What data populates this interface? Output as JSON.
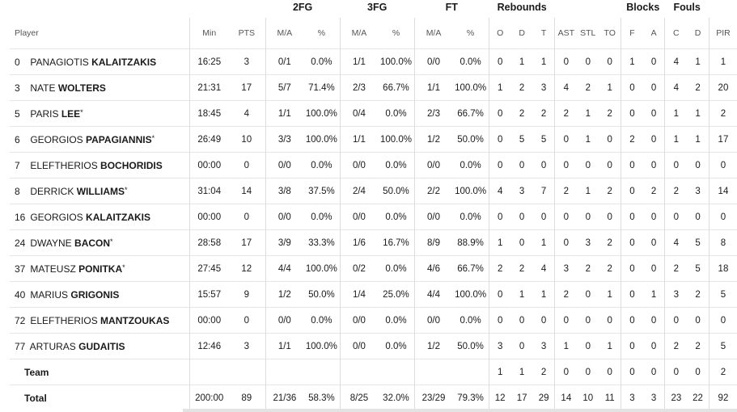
{
  "groups": {
    "fg2": "2FG",
    "fg3": "3FG",
    "ft": "FT",
    "rebounds": "Rebounds",
    "blocks": "Blocks",
    "fouls": "Fouls"
  },
  "headers": {
    "player": "Player",
    "min": "Min",
    "pts": "PTS",
    "fg2_ma": "M/A",
    "fg2_pct": "%",
    "fg3_ma": "M/A",
    "fg3_pct": "%",
    "ft_ma": "M/A",
    "ft_pct": "%",
    "o": "O",
    "d": "D",
    "t": "T",
    "ast": "AST",
    "stl": "STL",
    "to": "TO",
    "f": "F",
    "a": "A",
    "c": "C",
    "dr": "D",
    "pir": "PIR"
  },
  "players": [
    {
      "num": "0",
      "first": "PANAGIOTIS",
      "last": "KALAITZAKIS",
      "starter": "",
      "marked": false,
      "min": "16:25",
      "pts": "3",
      "fg2": "0/1",
      "fg2p": "0.0%",
      "fg3": "1/1",
      "fg3p": "100.0%",
      "ft": "0/0",
      "ftp": "0.0%",
      "o": "0",
      "d": "1",
      "t": "1",
      "ast": "0",
      "stl": "0",
      "to": "0",
      "f": "1",
      "a": "0",
      "c": "4",
      "dr": "1",
      "pir": "1"
    },
    {
      "num": "3",
      "first": "NATE",
      "last": "WOLTERS",
      "starter": "",
      "marked": true,
      "min": "21:31",
      "pts": "17",
      "fg2": "5/7",
      "fg2p": "71.4%",
      "fg3": "2/3",
      "fg3p": "66.7%",
      "ft": "1/1",
      "ftp": "100.0%",
      "o": "1",
      "d": "2",
      "t": "3",
      "ast": "4",
      "stl": "2",
      "to": "1",
      "f": "0",
      "a": "0",
      "c": "4",
      "dr": "2",
      "pir": "20"
    },
    {
      "num": "5",
      "first": "PARIS",
      "last": "LEE",
      "starter": "*",
      "marked": false,
      "min": "18:45",
      "pts": "4",
      "fg2": "1/1",
      "fg2p": "100.0%",
      "fg3": "0/4",
      "fg3p": "0.0%",
      "ft": "2/3",
      "ftp": "66.7%",
      "o": "0",
      "d": "2",
      "t": "2",
      "ast": "2",
      "stl": "1",
      "to": "2",
      "f": "0",
      "a": "0",
      "c": "1",
      "dr": "1",
      "pir": "2"
    },
    {
      "num": "6",
      "first": "GEORGIOS",
      "last": "PAPAGIANNIS",
      "starter": "*",
      "marked": false,
      "min": "26:49",
      "pts": "10",
      "fg2": "3/3",
      "fg2p": "100.0%",
      "fg3": "1/1",
      "fg3p": "100.0%",
      "ft": "1/2",
      "ftp": "50.0%",
      "o": "0",
      "d": "5",
      "t": "5",
      "ast": "0",
      "stl": "1",
      "to": "0",
      "f": "2",
      "a": "0",
      "c": "1",
      "dr": "1",
      "pir": "17"
    },
    {
      "num": "7",
      "first": "ELEFTHERIOS",
      "last": "BOCHORIDIS",
      "starter": "",
      "marked": false,
      "min": "00:00",
      "pts": "0",
      "fg2": "0/0",
      "fg2p": "0.0%",
      "fg3": "0/0",
      "fg3p": "0.0%",
      "ft": "0/0",
      "ftp": "0.0%",
      "o": "0",
      "d": "0",
      "t": "0",
      "ast": "0",
      "stl": "0",
      "to": "0",
      "f": "0",
      "a": "0",
      "c": "0",
      "dr": "0",
      "pir": "0"
    },
    {
      "num": "8",
      "first": "DERRICK",
      "last": "WILLIAMS",
      "starter": "*",
      "marked": true,
      "min": "31:04",
      "pts": "14",
      "fg2": "3/8",
      "fg2p": "37.5%",
      "fg3": "2/4",
      "fg3p": "50.0%",
      "ft": "2/2",
      "ftp": "100.0%",
      "o": "4",
      "d": "3",
      "t": "7",
      "ast": "2",
      "stl": "1",
      "to": "2",
      "f": "0",
      "a": "2",
      "c": "2",
      "dr": "3",
      "pir": "14"
    },
    {
      "num": "16",
      "first": "GEORGIOS",
      "last": "KALAITZAKIS",
      "starter": "",
      "marked": false,
      "min": "00:00",
      "pts": "0",
      "fg2": "0/0",
      "fg2p": "0.0%",
      "fg3": "0/0",
      "fg3p": "0.0%",
      "ft": "0/0",
      "ftp": "0.0%",
      "o": "0",
      "d": "0",
      "t": "0",
      "ast": "0",
      "stl": "0",
      "to": "0",
      "f": "0",
      "a": "0",
      "c": "0",
      "dr": "0",
      "pir": "0"
    },
    {
      "num": "24",
      "first": "DWAYNE",
      "last": "BACON",
      "starter": "*",
      "marked": true,
      "min": "28:58",
      "pts": "17",
      "fg2": "3/9",
      "fg2p": "33.3%",
      "fg3": "1/6",
      "fg3p": "16.7%",
      "ft": "8/9",
      "ftp": "88.9%",
      "o": "1",
      "d": "0",
      "t": "1",
      "ast": "0",
      "stl": "3",
      "to": "2",
      "f": "0",
      "a": "0",
      "c": "4",
      "dr": "5",
      "pir": "8"
    },
    {
      "num": "37",
      "first": "MATEUSZ",
      "last": "PONITKA",
      "starter": "*",
      "marked": true,
      "min": "27:45",
      "pts": "12",
      "fg2": "4/4",
      "fg2p": "100.0%",
      "fg3": "0/2",
      "fg3p": "0.0%",
      "ft": "4/6",
      "ftp": "66.7%",
      "o": "2",
      "d": "2",
      "t": "4",
      "ast": "3",
      "stl": "2",
      "to": "2",
      "f": "0",
      "a": "0",
      "c": "2",
      "dr": "5",
      "pir": "18"
    },
    {
      "num": "40",
      "first": "MARIUS",
      "last": "GRIGONIS",
      "starter": "",
      "marked": true,
      "min": "15:57",
      "pts": "9",
      "fg2": "1/2",
      "fg2p": "50.0%",
      "fg3": "1/4",
      "fg3p": "25.0%",
      "ft": "4/4",
      "ftp": "100.0%",
      "o": "0",
      "d": "1",
      "t": "1",
      "ast": "2",
      "stl": "0",
      "to": "1",
      "f": "0",
      "a": "1",
      "c": "3",
      "dr": "2",
      "pir": "5"
    },
    {
      "num": "72",
      "first": "ELEFTHERIOS",
      "last": "MANTZOUKAS",
      "starter": "",
      "marked": false,
      "min": "00:00",
      "pts": "0",
      "fg2": "0/0",
      "fg2p": "0.0%",
      "fg3": "0/0",
      "fg3p": "0.0%",
      "ft": "0/0",
      "ftp": "0.0%",
      "o": "0",
      "d": "0",
      "t": "0",
      "ast": "0",
      "stl": "0",
      "to": "0",
      "f": "0",
      "a": "0",
      "c": "0",
      "dr": "0",
      "pir": "0"
    },
    {
      "num": "77",
      "first": "ARTURAS",
      "last": "GUDAITIS",
      "starter": "",
      "marked": false,
      "min": "12:46",
      "pts": "3",
      "fg2": "1/1",
      "fg2p": "100.0%",
      "fg3": "0/0",
      "fg3p": "0.0%",
      "ft": "1/2",
      "ftp": "50.0%",
      "o": "3",
      "d": "0",
      "t": "3",
      "ast": "1",
      "stl": "0",
      "to": "1",
      "f": "0",
      "a": "0",
      "c": "2",
      "dr": "2",
      "pir": "5"
    }
  ],
  "team": {
    "label": "Team",
    "min": "",
    "pts": "",
    "fg2": "",
    "fg2p": "",
    "fg3": "",
    "fg3p": "",
    "ft": "",
    "ftp": "",
    "o": "1",
    "d": "1",
    "t": "2",
    "ast": "0",
    "stl": "0",
    "to": "0",
    "f": "0",
    "a": "0",
    "c": "0",
    "dr": "0",
    "pir": "2"
  },
  "total": {
    "label": "Total",
    "min": "200:00",
    "pts": "89",
    "fg2": "21/36",
    "fg2p": "58.3%",
    "fg3": "8/25",
    "fg3p": "32.0%",
    "ft": "23/29",
    "ftp": "79.3%",
    "o": "12",
    "d": "17",
    "t": "29",
    "ast": "14",
    "stl": "10",
    "to": "11",
    "f": "3",
    "a": "3",
    "c": "23",
    "dr": "22",
    "pir": "92"
  },
  "colors": {
    "highlight_marker": "#f07b3a"
  }
}
